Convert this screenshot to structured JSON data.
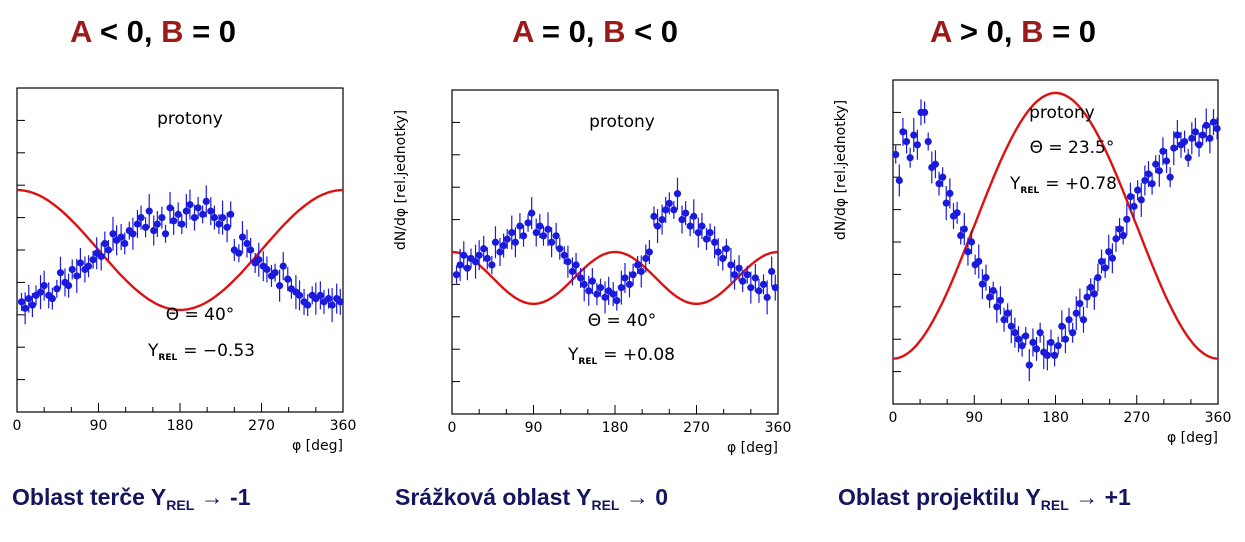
{
  "panels": [
    {
      "title": {
        "a": "A",
        "a_rel": "< 0,",
        "b": "B",
        "b_rel": "= 0"
      },
      "caption": {
        "text": "Oblast terče  Y",
        "sub": "REL",
        "arrow": "→",
        "value": "-1"
      }
    },
    {
      "title": {
        "a": "A",
        "a_rel": "= 0,",
        "b": "B",
        "b_rel": "< 0"
      },
      "caption": {
        "text": "Srážková oblast Y",
        "sub": "REL",
        "arrow": "→",
        "value": "0"
      }
    },
    {
      "title": {
        "a": "A",
        "a_rel": "> 0,",
        "b": "B",
        "b_rel": "= 0"
      },
      "caption": {
        "text": "Oblast projektilu Y",
        "sub": "REL",
        "arrow": "→",
        "value": "+1"
      }
    }
  ],
  "colors": {
    "title_accent": "#9b1b1b",
    "caption": "#14155e",
    "points": "#1a1adc",
    "fit": "#dd1111"
  },
  "chart_data": [
    {
      "type": "scatter",
      "title": "protony",
      "annotations": [
        "Θ = 40°",
        "Y_REL = −0.53"
      ],
      "ann_theta": "Θ = 40°",
      "ann_y_pre": "Y",
      "ann_y_sub": "REL",
      "ann_y_val": "= −0.53",
      "xlabel": "φ [deg]",
      "ylabel": "",
      "xlim": [
        0,
        360
      ],
      "ylim": [
        0,
        10
      ],
      "xticks": [
        "0",
        "90",
        "180",
        "270",
        "360"
      ],
      "fit": {
        "A": -0.53,
        "B": 0,
        "mean": 5.0,
        "amp": 1.85
      },
      "points": [
        [
          5,
          3.4
        ],
        [
          9,
          3.2
        ],
        [
          13,
          3.5
        ],
        [
          17,
          3.3
        ],
        [
          21,
          3.6
        ],
        [
          26,
          3.7
        ],
        [
          30,
          3.9
        ],
        [
          35,
          3.6
        ],
        [
          39,
          3.5
        ],
        [
          44,
          3.8
        ],
        [
          48,
          4.3
        ],
        [
          53,
          4.0
        ],
        [
          57,
          3.9
        ],
        [
          61,
          4.4
        ],
        [
          66,
          4.2
        ],
        [
          70,
          4.6
        ],
        [
          75,
          4.4
        ],
        [
          79,
          4.5
        ],
        [
          84,
          4.7
        ],
        [
          88,
          4.9
        ],
        [
          93,
          4.8
        ],
        [
          97,
          5.2
        ],
        [
          101,
          5.0
        ],
        [
          106,
          5.5
        ],
        [
          110,
          5.3
        ],
        [
          115,
          5.4
        ],
        [
          119,
          5.2
        ],
        [
          124,
          5.6
        ],
        [
          128,
          5.5
        ],
        [
          133,
          5.8
        ],
        [
          137,
          6.0
        ],
        [
          142,
          5.7
        ],
        [
          146,
          6.2
        ],
        [
          151,
          5.6
        ],
        [
          155,
          5.8
        ],
        [
          160,
          6.0
        ],
        [
          164,
          5.5
        ],
        [
          169,
          6.3
        ],
        [
          173,
          5.9
        ],
        [
          178,
          6.1
        ],
        [
          182,
          5.8
        ],
        [
          187,
          6.2
        ],
        [
          191,
          6.4
        ],
        [
          196,
          6.0
        ],
        [
          200,
          6.3
        ],
        [
          205,
          6.1
        ],
        [
          209,
          6.5
        ],
        [
          214,
          6.2
        ],
        [
          218,
          6.0
        ],
        [
          223,
          5.8
        ],
        [
          227,
          6.0
        ],
        [
          232,
          5.7
        ],
        [
          236,
          6.1
        ],
        [
          240,
          5.0
        ],
        [
          245,
          4.9
        ],
        [
          249,
          5.4
        ],
        [
          254,
          5.2
        ],
        [
          258,
          5.0
        ],
        [
          263,
          4.6
        ],
        [
          267,
          4.7
        ],
        [
          272,
          4.5
        ],
        [
          276,
          4.4
        ],
        [
          281,
          4.2
        ],
        [
          285,
          4.3
        ],
        [
          290,
          3.9
        ],
        [
          294,
          4.5
        ],
        [
          299,
          4.1
        ],
        [
          303,
          3.8
        ],
        [
          308,
          3.7
        ],
        [
          312,
          3.6
        ],
        [
          317,
          3.4
        ],
        [
          321,
          3.3
        ],
        [
          326,
          3.6
        ],
        [
          330,
          3.5
        ],
        [
          335,
          3.6
        ],
        [
          339,
          3.4
        ],
        [
          344,
          3.5
        ],
        [
          348,
          3.3
        ],
        [
          353,
          3.5
        ],
        [
          357,
          3.4
        ]
      ]
    },
    {
      "type": "scatter",
      "title": "protony",
      "annotations": [
        "Θ = 40°",
        "Y_REL = +0.08"
      ],
      "ann_theta": "Θ = 40°",
      "ann_y_pre": "Y",
      "ann_y_sub": "REL",
      "ann_y_val": "= +0.08",
      "xlabel": "φ [deg]",
      "ylabel": "dN/dφ [rel.jednotky]",
      "xlim": [
        0,
        360
      ],
      "ylim": [
        0,
        10
      ],
      "xticks": [
        "0",
        "90",
        "180",
        "270",
        "360"
      ],
      "fit": {
        "A": 0,
        "B": -0.36,
        "mean": 4.2,
        "amp": 0.8
      },
      "points": [
        [
          5,
          4.3
        ],
        [
          9,
          4.6
        ],
        [
          13,
          4.9
        ],
        [
          17,
          4.5
        ],
        [
          21,
          4.8
        ],
        [
          26,
          4.7
        ],
        [
          30,
          4.9
        ],
        [
          35,
          5.1
        ],
        [
          39,
          4.8
        ],
        [
          44,
          4.6
        ],
        [
          48,
          5.3
        ],
        [
          53,
          5.0
        ],
        [
          57,
          5.2
        ],
        [
          61,
          5.4
        ],
        [
          66,
          5.6
        ],
        [
          70,
          5.3
        ],
        [
          75,
          5.8
        ],
        [
          79,
          5.5
        ],
        [
          84,
          5.9
        ],
        [
          88,
          6.2
        ],
        [
          93,
          5.6
        ],
        [
          97,
          5.8
        ],
        [
          101,
          5.5
        ],
        [
          106,
          5.7
        ],
        [
          110,
          5.3
        ],
        [
          115,
          5.5
        ],
        [
          119,
          5.1
        ],
        [
          124,
          4.9
        ],
        [
          128,
          4.7
        ],
        [
          133,
          4.4
        ],
        [
          137,
          4.6
        ],
        [
          142,
          4.2
        ],
        [
          146,
          4.0
        ],
        [
          151,
          3.8
        ],
        [
          155,
          4.1
        ],
        [
          160,
          3.7
        ],
        [
          164,
          3.9
        ],
        [
          169,
          3.6
        ],
        [
          173,
          3.8
        ],
        [
          178,
          3.7
        ],
        [
          182,
          3.5
        ],
        [
          187,
          3.9
        ],
        [
          191,
          4.2
        ],
        [
          196,
          4.0
        ],
        [
          200,
          4.3
        ],
        [
          205,
          4.6
        ],
        [
          209,
          4.4
        ],
        [
          214,
          4.8
        ],
        [
          218,
          5.0
        ],
        [
          223,
          6.1
        ],
        [
          227,
          5.8
        ],
        [
          232,
          6.0
        ],
        [
          236,
          6.3
        ],
        [
          240,
          6.5
        ],
        [
          245,
          6.3
        ],
        [
          249,
          6.8
        ],
        [
          254,
          6.0
        ],
        [
          258,
          6.2
        ],
        [
          263,
          5.8
        ],
        [
          267,
          6.1
        ],
        [
          272,
          5.6
        ],
        [
          276,
          5.8
        ],
        [
          281,
          5.4
        ],
        [
          285,
          5.6
        ],
        [
          290,
          5.3
        ],
        [
          294,
          5.0
        ],
        [
          299,
          4.8
        ],
        [
          303,
          5.1
        ],
        [
          308,
          4.6
        ],
        [
          312,
          4.3
        ],
        [
          317,
          4.5
        ],
        [
          321,
          4.1
        ],
        [
          326,
          4.3
        ],
        [
          330,
          3.9
        ],
        [
          335,
          4.2
        ],
        [
          339,
          3.8
        ],
        [
          344,
          4.0
        ],
        [
          348,
          3.6
        ],
        [
          353,
          4.4
        ],
        [
          357,
          3.9
        ]
      ]
    },
    {
      "type": "scatter",
      "title": "protony",
      "annotations": [
        "Θ = 23.5°",
        "Y_REL = +0.78"
      ],
      "ann_theta": "Θ = 23.5°",
      "ann_y_pre": "Y",
      "ann_y_sub": "REL",
      "ann_y_val": "= +0.78",
      "xlabel": "φ [deg]",
      "ylabel": "dN/dφ [rel.jednotky]",
      "xlim": [
        0,
        360
      ],
      "ylim": [
        0,
        10
      ],
      "xticks": [
        "0",
        "90",
        "180",
        "270",
        "360"
      ],
      "fit": {
        "A": 0.78,
        "B": 0,
        "mean": 5.5,
        "amp": 4.1
      },
      "points": [
        [
          3,
          7.7
        ],
        [
          7,
          6.9
        ],
        [
          11,
          8.4
        ],
        [
          15,
          8.1
        ],
        [
          19,
          7.6
        ],
        [
          23,
          8.3
        ],
        [
          27,
          8.0
        ],
        [
          31,
          9.0
        ],
        [
          35,
          9.0
        ],
        [
          39,
          8.1
        ],
        [
          43,
          7.3
        ],
        [
          47,
          7.4
        ],
        [
          51,
          6.8
        ],
        [
          55,
          7.0
        ],
        [
          59,
          6.2
        ],
        [
          63,
          6.5
        ],
        [
          67,
          5.8
        ],
        [
          71,
          5.9
        ],
        [
          75,
          5.2
        ],
        [
          79,
          5.4
        ],
        [
          83,
          4.7
        ],
        [
          87,
          5.0
        ],
        [
          91,
          4.3
        ],
        [
          95,
          4.4
        ],
        [
          99,
          3.7
        ],
        [
          103,
          3.9
        ],
        [
          107,
          3.3
        ],
        [
          111,
          3.5
        ],
        [
          115,
          3.0
        ],
        [
          119,
          3.2
        ],
        [
          123,
          2.6
        ],
        [
          127,
          2.8
        ],
        [
          131,
          2.4
        ],
        [
          135,
          2.2
        ],
        [
          139,
          2.0
        ],
        [
          143,
          1.8
        ],
        [
          147,
          2.1
        ],
        [
          151,
          1.2
        ],
        [
          155,
          1.9
        ],
        [
          159,
          1.7
        ],
        [
          163,
          2.2
        ],
        [
          167,
          1.6
        ],
        [
          171,
          1.5
        ],
        [
          175,
          1.9
        ],
        [
          179,
          1.5
        ],
        [
          183,
          1.8
        ],
        [
          187,
          2.4
        ],
        [
          191,
          2.0
        ],
        [
          195,
          2.6
        ],
        [
          199,
          2.2
        ],
        [
          203,
          2.8
        ],
        [
          207,
          3.1
        ],
        [
          211,
          2.6
        ],
        [
          215,
          3.3
        ],
        [
          219,
          3.6
        ],
        [
          223,
          3.4
        ],
        [
          227,
          3.9
        ],
        [
          231,
          4.4
        ],
        [
          235,
          4.2
        ],
        [
          239,
          4.7
        ],
        [
          243,
          4.5
        ],
        [
          247,
          5.1
        ],
        [
          251,
          5.4
        ],
        [
          255,
          5.2
        ],
        [
          259,
          5.7
        ],
        [
          263,
          6.4
        ],
        [
          267,
          6.1
        ],
        [
          271,
          6.6
        ],
        [
          275,
          6.3
        ],
        [
          279,
          6.9
        ],
        [
          283,
          7.1
        ],
        [
          287,
          6.8
        ],
        [
          291,
          7.4
        ],
        [
          295,
          7.2
        ],
        [
          299,
          7.8
        ],
        [
          303,
          7.5
        ],
        [
          307,
          7.0
        ],
        [
          311,
          7.9
        ],
        [
          315,
          8.3
        ],
        [
          319,
          8.0
        ],
        [
          323,
          8.1
        ],
        [
          327,
          7.6
        ],
        [
          331,
          8.2
        ],
        [
          335,
          8.4
        ],
        [
          339,
          8.0
        ],
        [
          343,
          8.3
        ],
        [
          347,
          8.6
        ],
        [
          351,
          8.2
        ],
        [
          355,
          8.7
        ],
        [
          359,
          8.5
        ]
      ]
    }
  ]
}
